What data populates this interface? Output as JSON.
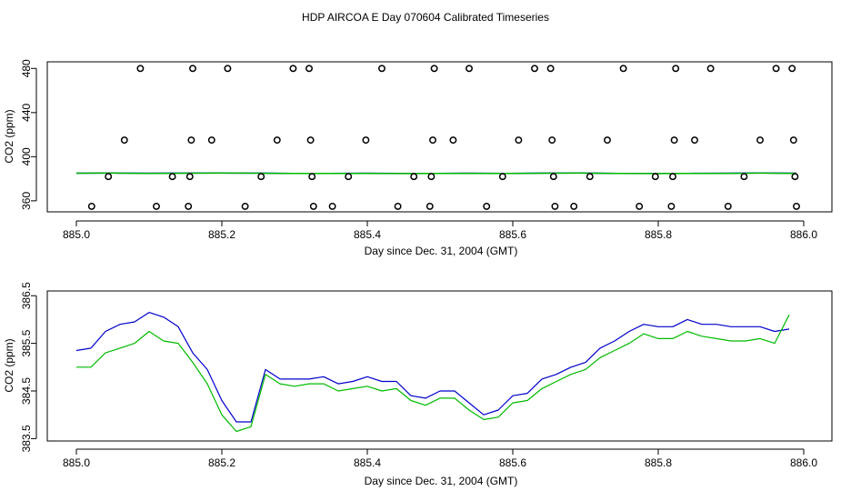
{
  "title": "HDP AIRCOA E  Day 070604  Calibrated Timeseries",
  "colors": {
    "blue": "#0000cc",
    "green": "#00bb00",
    "points": "#000000",
    "frame": "#000000"
  },
  "chart_data": [
    {
      "type": "scatter",
      "xlabel": "Day since Dec. 31, 2004 (GMT)",
      "ylabel": "CO2 (ppm)",
      "xlim": [
        885.0,
        886.0
      ],
      "ylim": [
        350,
        486
      ],
      "xticks": [
        "885.0",
        "885.2",
        "885.4",
        "885.6",
        "885.8",
        "886.0"
      ],
      "yticks": [
        "360",
        "400",
        "440",
        "480"
      ],
      "points": [
        [
          885.021,
          355
        ],
        [
          885.044,
          382
        ],
        [
          885.066,
          415
        ],
        [
          885.088,
          480
        ],
        [
          885.11,
          355
        ],
        [
          885.132,
          382
        ],
        [
          885.154,
          355
        ],
        [
          885.156,
          382
        ],
        [
          885.158,
          415
        ],
        [
          885.16,
          480
        ],
        [
          885.186,
          415
        ],
        [
          885.208,
          480
        ],
        [
          885.232,
          355
        ],
        [
          885.254,
          382
        ],
        [
          885.276,
          415
        ],
        [
          885.298,
          480
        ],
        [
          885.32,
          480
        ],
        [
          885.322,
          415
        ],
        [
          885.324,
          382
        ],
        [
          885.326,
          355
        ],
        [
          885.352,
          355
        ],
        [
          885.374,
          382
        ],
        [
          885.398,
          415
        ],
        [
          885.42,
          480
        ],
        [
          885.442,
          355
        ],
        [
          885.464,
          382
        ],
        [
          885.486,
          355
        ],
        [
          885.488,
          382
        ],
        [
          885.49,
          415
        ],
        [
          885.492,
          480
        ],
        [
          885.518,
          415
        ],
        [
          885.54,
          480
        ],
        [
          885.564,
          355
        ],
        [
          885.586,
          382
        ],
        [
          885.608,
          415
        ],
        [
          885.63,
          480
        ],
        [
          885.652,
          480
        ],
        [
          885.654,
          415
        ],
        [
          885.656,
          382
        ],
        [
          885.658,
          355
        ],
        [
          885.684,
          355
        ],
        [
          885.706,
          382
        ],
        [
          885.73,
          415
        ],
        [
          885.752,
          480
        ],
        [
          885.774,
          355
        ],
        [
          885.796,
          382
        ],
        [
          885.818,
          355
        ],
        [
          885.82,
          382
        ],
        [
          885.822,
          415
        ],
        [
          885.824,
          480
        ],
        [
          885.85,
          415
        ],
        [
          885.872,
          480
        ],
        [
          885.896,
          355
        ],
        [
          885.918,
          382
        ],
        [
          885.94,
          415
        ],
        [
          885.962,
          480
        ],
        [
          885.984,
          480
        ],
        [
          885.986,
          415
        ],
        [
          885.988,
          382
        ],
        [
          885.99,
          355
        ]
      ],
      "series": [
        {
          "color": "#0000cc",
          "y": [
            385.0,
            385.2,
            385.0,
            385.1,
            385.2,
            385.1,
            384.8,
            384.9,
            385.0,
            384.8,
            384.9,
            385.0,
            384.9,
            385.1,
            385.2,
            384.9,
            384.8,
            384.9,
            385.0,
            385.2,
            385.0
          ]
        },
        {
          "color": "#00bb00",
          "y": [
            385.0,
            385.1,
            384.9,
            385.0,
            385.1,
            385.0,
            384.8,
            384.8,
            384.9,
            384.7,
            384.8,
            384.9,
            384.8,
            385.0,
            385.1,
            384.8,
            384.7,
            384.8,
            384.9,
            385.1,
            384.9
          ]
        }
      ]
    },
    {
      "type": "line",
      "xlabel": "Day since Dec. 31, 2004 (GMT)",
      "ylabel": "CO2 (ppm)",
      "xlim": [
        885.0,
        886.0
      ],
      "ylim": [
        383.45,
        386.6
      ],
      "xticks": [
        "885.0",
        "885.2",
        "885.4",
        "885.6",
        "885.8",
        "886.0"
      ],
      "yticks": [
        "383.5",
        "384.5",
        "385.5",
        "386.5"
      ],
      "x_start": 885.0,
      "x_step": 0.02,
      "series": [
        {
          "color": "#0000cc",
          "values": [
            385.35,
            385.4,
            385.75,
            385.9,
            385.95,
            386.15,
            386.05,
            385.85,
            385.3,
            384.95,
            384.3,
            383.85,
            383.85,
            384.95,
            384.75,
            384.75,
            384.75,
            384.8,
            384.65,
            384.7,
            384.8,
            384.7,
            384.7,
            384.4,
            384.35,
            384.5,
            384.5,
            384.25,
            384.0,
            384.1,
            384.4,
            384.45,
            384.75,
            384.85,
            385.0,
            385.1,
            385.4,
            385.55,
            385.75,
            385.9,
            385.85,
            385.85,
            386.0,
            385.9,
            385.9,
            385.85,
            385.85,
            385.85,
            385.75,
            385.8
          ]
        },
        {
          "color": "#00bb00",
          "values": [
            385.0,
            385.0,
            385.3,
            385.4,
            385.5,
            385.75,
            385.55,
            385.5,
            385.1,
            384.65,
            384.0,
            383.65,
            383.75,
            384.85,
            384.65,
            384.6,
            384.65,
            384.65,
            384.5,
            384.55,
            384.6,
            384.5,
            384.55,
            384.3,
            384.2,
            384.35,
            384.35,
            384.1,
            383.9,
            383.95,
            384.25,
            384.3,
            384.55,
            384.7,
            384.85,
            384.95,
            385.2,
            385.35,
            385.5,
            385.7,
            385.6,
            385.6,
            385.75,
            385.65,
            385.6,
            385.55,
            385.55,
            385.6,
            385.5,
            386.1
          ]
        }
      ]
    }
  ]
}
